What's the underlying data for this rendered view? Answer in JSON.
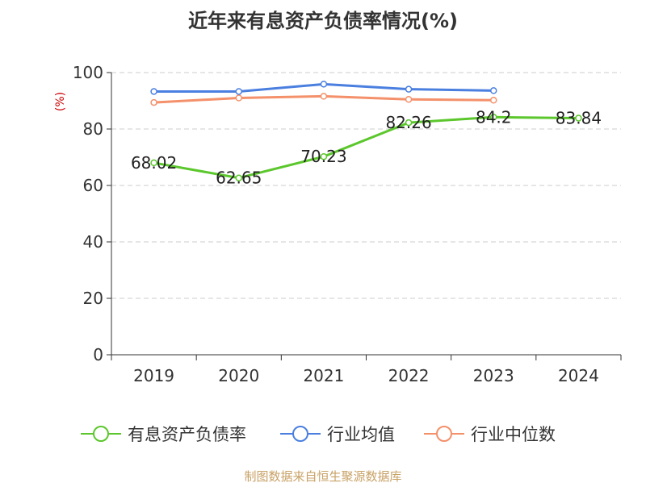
{
  "chart_data": {
    "type": "line",
    "title": "近年来有息资产负债率情况(%)",
    "ylabel": "(%)",
    "xlabel": "",
    "categories": [
      "2019",
      "2020",
      "2021",
      "2022",
      "2023",
      "2024"
    ],
    "ylim": [
      0,
      100
    ],
    "yticks": [
      0,
      20,
      40,
      60,
      80,
      100
    ],
    "grid": true,
    "legend_position": "bottom",
    "series": [
      {
        "name": "有息资产负债率",
        "color": "#5cc72d",
        "values": [
          68.02,
          62.65,
          70.23,
          82.26,
          84.2,
          83.84
        ],
        "data_labels": [
          "68.02",
          "62.65",
          "70.23",
          "82.26",
          "84.2",
          "83.84"
        ]
      },
      {
        "name": "行业均值",
        "color": "#4a7fe0",
        "values": [
          93.3,
          93.3,
          95.9,
          94.1,
          93.6,
          null
        ]
      },
      {
        "name": "行业中位数",
        "color": "#f4906a",
        "values": [
          89.4,
          91.0,
          91.6,
          90.5,
          90.2,
          null
        ]
      }
    ]
  },
  "source": "制图数据来自恒生聚源数据库"
}
